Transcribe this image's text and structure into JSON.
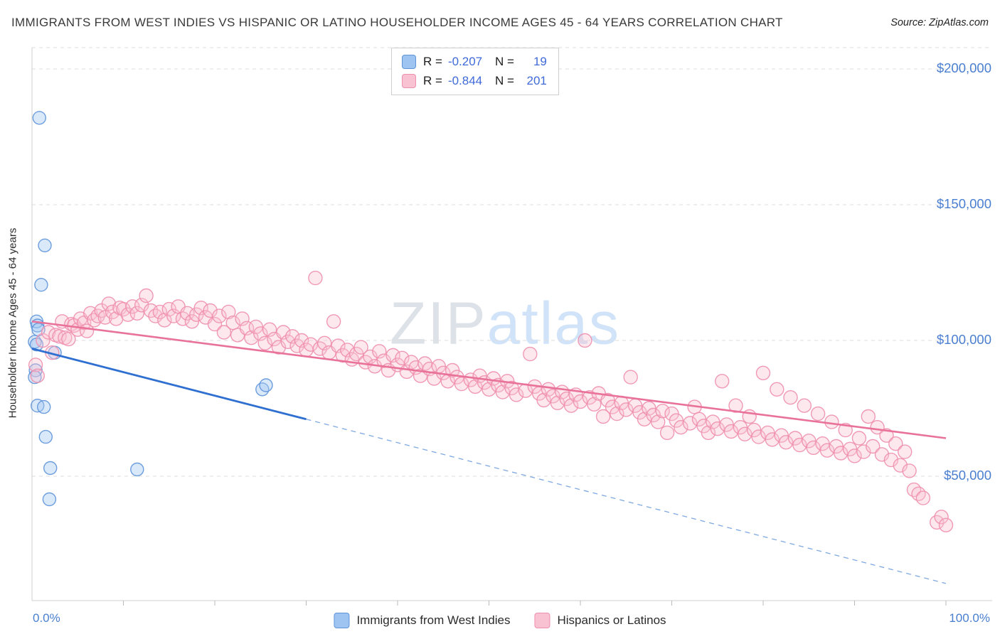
{
  "header": {
    "title": "IMMIGRANTS FROM WEST INDIES VS HISPANIC OR LATINO HOUSEHOLDER INCOME AGES 45 - 64 YEARS CORRELATION CHART",
    "source": "Source: ZipAtlas.com"
  },
  "watermark": {
    "part1": "ZIP",
    "part2": "atlas"
  },
  "colors": {
    "blue_fill": "#9ec5f2",
    "blue_stroke": "#5e93d9",
    "blue_line": "#2e6fd0",
    "pink_fill": "#f9c2d3",
    "pink_stroke": "#ee8fae",
    "pink_line": "#e8729a",
    "axis_text": "#4a7fd0",
    "grid": "#dedede",
    "value_text": "#3f6ad8"
  },
  "legend_box": {
    "series": [
      {
        "r_label": "R =",
        "r_value": "-0.207",
        "n_label": "N =",
        "n_value": "19"
      },
      {
        "r_label": "R =",
        "r_value": "-0.844",
        "n_label": "N =",
        "n_value": "201"
      }
    ]
  },
  "bottom_legend": {
    "items": [
      {
        "label": "Immigrants from West Indies"
      },
      {
        "label": "Hispanics or Latinos"
      }
    ]
  },
  "axes": {
    "y_label": "Householder Income Ages 45 - 64 years",
    "y_ticks": [
      {
        "value": 200000,
        "label": "$200,000"
      },
      {
        "value": 150000,
        "label": "$150,000"
      },
      {
        "value": 100000,
        "label": "$100,000"
      },
      {
        "value": 50000,
        "label": "$50,000"
      }
    ],
    "x_min_label": "0.0%",
    "x_max_label": "100.0%"
  },
  "chart_data": {
    "type": "scatter",
    "title": "Immigrants from West Indies vs Hispanic or Latino Householder Income Ages 45 - 64 years Correlation Chart",
    "xlabel": "Immigrants from West Indies (%)",
    "ylabel": "Householder Income Ages 45 - 64 years",
    "xlim": [
      0,
      100
    ],
    "ylim": [
      0,
      210000
    ],
    "grid": "horizontal-dashed",
    "legend_position": "top-center",
    "series": [
      {
        "name": "Immigrants from West Indies",
        "R": -0.207,
        "N": 19,
        "points": [
          [
            0.8,
            182000
          ],
          [
            1.4,
            135000
          ],
          [
            1.0,
            120500
          ],
          [
            0.5,
            107000
          ],
          [
            0.6,
            105500
          ],
          [
            0.7,
            104000
          ],
          [
            0.3,
            99500
          ],
          [
            0.5,
            98500
          ],
          [
            2.5,
            95500
          ],
          [
            0.4,
            89000
          ],
          [
            0.3,
            86500
          ],
          [
            0.6,
            76000
          ],
          [
            1.3,
            75500
          ],
          [
            1.5,
            64500
          ],
          [
            2.0,
            53000
          ],
          [
            11.5,
            52500
          ],
          [
            1.9,
            41500
          ],
          [
            25.2,
            82000
          ],
          [
            25.6,
            83500
          ]
        ]
      },
      {
        "name": "Hispanics or Latinos",
        "R": -0.844,
        "N": 201,
        "points": [
          [
            0.4,
            91000
          ],
          [
            0.6,
            87000
          ],
          [
            1.2,
            100000
          ],
          [
            1.8,
            103000
          ],
          [
            2.2,
            95500
          ],
          [
            2.6,
            102000
          ],
          [
            3.0,
            101500
          ],
          [
            3.3,
            107000
          ],
          [
            3.6,
            101000
          ],
          [
            4.0,
            100500
          ],
          [
            4.3,
            106000
          ],
          [
            4.6,
            105500
          ],
          [
            5.0,
            104000
          ],
          [
            5.3,
            108000
          ],
          [
            5.7,
            106500
          ],
          [
            6.0,
            103500
          ],
          [
            6.4,
            110000
          ],
          [
            6.8,
            107500
          ],
          [
            7.2,
            109000
          ],
          [
            7.6,
            111000
          ],
          [
            8.0,
            108500
          ],
          [
            8.4,
            113500
          ],
          [
            8.8,
            110500
          ],
          [
            9.2,
            108000
          ],
          [
            9.6,
            112000
          ],
          [
            10.0,
            111500
          ],
          [
            10.5,
            109500
          ],
          [
            11.0,
            112500
          ],
          [
            11.5,
            110000
          ],
          [
            12.0,
            113000
          ],
          [
            12.5,
            116500
          ],
          [
            13.0,
            111000
          ],
          [
            13.5,
            109000
          ],
          [
            14.0,
            110500
          ],
          [
            14.5,
            107500
          ],
          [
            15.0,
            111500
          ],
          [
            15.5,
            109000
          ],
          [
            16.0,
            112500
          ],
          [
            16.5,
            108000
          ],
          [
            17.0,
            110000
          ],
          [
            17.5,
            107000
          ],
          [
            18.0,
            109500
          ],
          [
            18.5,
            112000
          ],
          [
            19.0,
            108500
          ],
          [
            19.5,
            111000
          ],
          [
            20.0,
            106000
          ],
          [
            20.5,
            109000
          ],
          [
            21.0,
            103000
          ],
          [
            21.5,
            110500
          ],
          [
            22.0,
            106500
          ],
          [
            22.5,
            102000
          ],
          [
            23.0,
            108000
          ],
          [
            23.5,
            104500
          ],
          [
            24.0,
            101000
          ],
          [
            24.5,
            105000
          ],
          [
            25.0,
            102500
          ],
          [
            25.5,
            99000
          ],
          [
            26.0,
            104000
          ],
          [
            26.5,
            100500
          ],
          [
            27.0,
            97500
          ],
          [
            27.5,
            103000
          ],
          [
            28.0,
            99500
          ],
          [
            28.5,
            101500
          ],
          [
            29.0,
            98000
          ],
          [
            29.5,
            100000
          ],
          [
            30.0,
            96500
          ],
          [
            30.5,
            98500
          ],
          [
            31.0,
            123000
          ],
          [
            31.5,
            97000
          ],
          [
            32.0,
            99000
          ],
          [
            32.5,
            95500
          ],
          [
            33.0,
            107000
          ],
          [
            33.5,
            98000
          ],
          [
            34.0,
            94500
          ],
          [
            34.5,
            96500
          ],
          [
            35.0,
            93000
          ],
          [
            35.5,
            95000
          ],
          [
            36.0,
            97500
          ],
          [
            36.5,
            92000
          ],
          [
            37.0,
            94000
          ],
          [
            37.5,
            90500
          ],
          [
            38.0,
            96000
          ],
          [
            38.5,
            92500
          ],
          [
            39.0,
            89000
          ],
          [
            39.5,
            94500
          ],
          [
            40.0,
            91000
          ],
          [
            40.5,
            93500
          ],
          [
            41.0,
            88500
          ],
          [
            41.5,
            92000
          ],
          [
            42.0,
            90000
          ],
          [
            42.5,
            87000
          ],
          [
            43.0,
            91500
          ],
          [
            43.5,
            89500
          ],
          [
            44.0,
            86000
          ],
          [
            44.5,
            90500
          ],
          [
            45.0,
            88000
          ],
          [
            45.5,
            85000
          ],
          [
            46.0,
            89000
          ],
          [
            46.5,
            86500
          ],
          [
            47.0,
            84000
          ],
          [
            48.0,
            85500
          ],
          [
            48.5,
            83000
          ],
          [
            49.0,
            87000
          ],
          [
            49.5,
            84500
          ],
          [
            50.0,
            82000
          ],
          [
            50.5,
            86000
          ],
          [
            51.0,
            83500
          ],
          [
            51.5,
            81000
          ],
          [
            52.0,
            85000
          ],
          [
            52.5,
            82500
          ],
          [
            53.0,
            80000
          ],
          [
            54.0,
            81500
          ],
          [
            54.5,
            95000
          ],
          [
            55.0,
            83000
          ],
          [
            55.5,
            80500
          ],
          [
            56.0,
            78000
          ],
          [
            56.5,
            82000
          ],
          [
            57.0,
            79500
          ],
          [
            57.5,
            77000
          ],
          [
            58.0,
            81000
          ],
          [
            58.5,
            78500
          ],
          [
            59.0,
            76000
          ],
          [
            59.5,
            80000
          ],
          [
            60.0,
            77500
          ],
          [
            60.5,
            100000
          ],
          [
            61.0,
            79000
          ],
          [
            61.5,
            76500
          ],
          [
            62.0,
            80500
          ],
          [
            62.5,
            72000
          ],
          [
            63.0,
            78000
          ],
          [
            63.5,
            75500
          ],
          [
            64.0,
            73000
          ],
          [
            64.5,
            77000
          ],
          [
            65.0,
            74500
          ],
          [
            65.5,
            86500
          ],
          [
            66.0,
            76000
          ],
          [
            66.5,
            73500
          ],
          [
            67.0,
            71000
          ],
          [
            67.5,
            75000
          ],
          [
            68.0,
            72500
          ],
          [
            68.5,
            70000
          ],
          [
            69.0,
            74000
          ],
          [
            69.5,
            66000
          ],
          [
            70.0,
            73000
          ],
          [
            70.5,
            70500
          ],
          [
            71.0,
            68000
          ],
          [
            72.0,
            69500
          ],
          [
            72.5,
            75500
          ],
          [
            73.0,
            71000
          ],
          [
            73.5,
            68500
          ],
          [
            74.0,
            66000
          ],
          [
            74.5,
            70000
          ],
          [
            75.0,
            67500
          ],
          [
            75.5,
            85000
          ],
          [
            76.0,
            69000
          ],
          [
            76.5,
            66500
          ],
          [
            77.0,
            76000
          ],
          [
            77.5,
            68000
          ],
          [
            78.0,
            65500
          ],
          [
            78.5,
            72000
          ],
          [
            79.0,
            67000
          ],
          [
            79.5,
            64500
          ],
          [
            80.0,
            88000
          ],
          [
            80.5,
            66000
          ],
          [
            81.0,
            63500
          ],
          [
            81.5,
            82000
          ],
          [
            82.0,
            65000
          ],
          [
            82.5,
            62500
          ],
          [
            83.0,
            79000
          ],
          [
            83.5,
            64000
          ],
          [
            84.0,
            61500
          ],
          [
            84.5,
            76000
          ],
          [
            85.0,
            63000
          ],
          [
            85.5,
            60500
          ],
          [
            86.0,
            73000
          ],
          [
            86.5,
            62000
          ],
          [
            87.0,
            59500
          ],
          [
            87.5,
            70000
          ],
          [
            88.0,
            61000
          ],
          [
            88.5,
            58500
          ],
          [
            89.0,
            67000
          ],
          [
            89.5,
            60000
          ],
          [
            90.0,
            57500
          ],
          [
            90.5,
            64000
          ],
          [
            91.0,
            59000
          ],
          [
            91.5,
            72000
          ],
          [
            92.0,
            61000
          ],
          [
            92.5,
            68000
          ],
          [
            93.0,
            58000
          ],
          [
            93.5,
            65000
          ],
          [
            94.0,
            56000
          ],
          [
            94.5,
            62000
          ],
          [
            95.0,
            54000
          ],
          [
            95.5,
            59000
          ],
          [
            96.0,
            52000
          ],
          [
            96.5,
            45000
          ],
          [
            97.0,
            43500
          ],
          [
            97.5,
            42000
          ],
          [
            99.0,
            33000
          ],
          [
            99.5,
            35000
          ],
          [
            100.0,
            32000
          ]
        ]
      }
    ],
    "trend_lines": [
      {
        "series": "Immigrants from West Indies",
        "solid_from": [
          0,
          97000
        ],
        "solid_to": [
          30,
          71000
        ],
        "dashed_to": [
          100,
          10500
        ]
      },
      {
        "series": "Hispanics or Latinos",
        "solid_from": [
          0,
          107000
        ],
        "solid_to": [
          100,
          64000
        ]
      }
    ]
  }
}
